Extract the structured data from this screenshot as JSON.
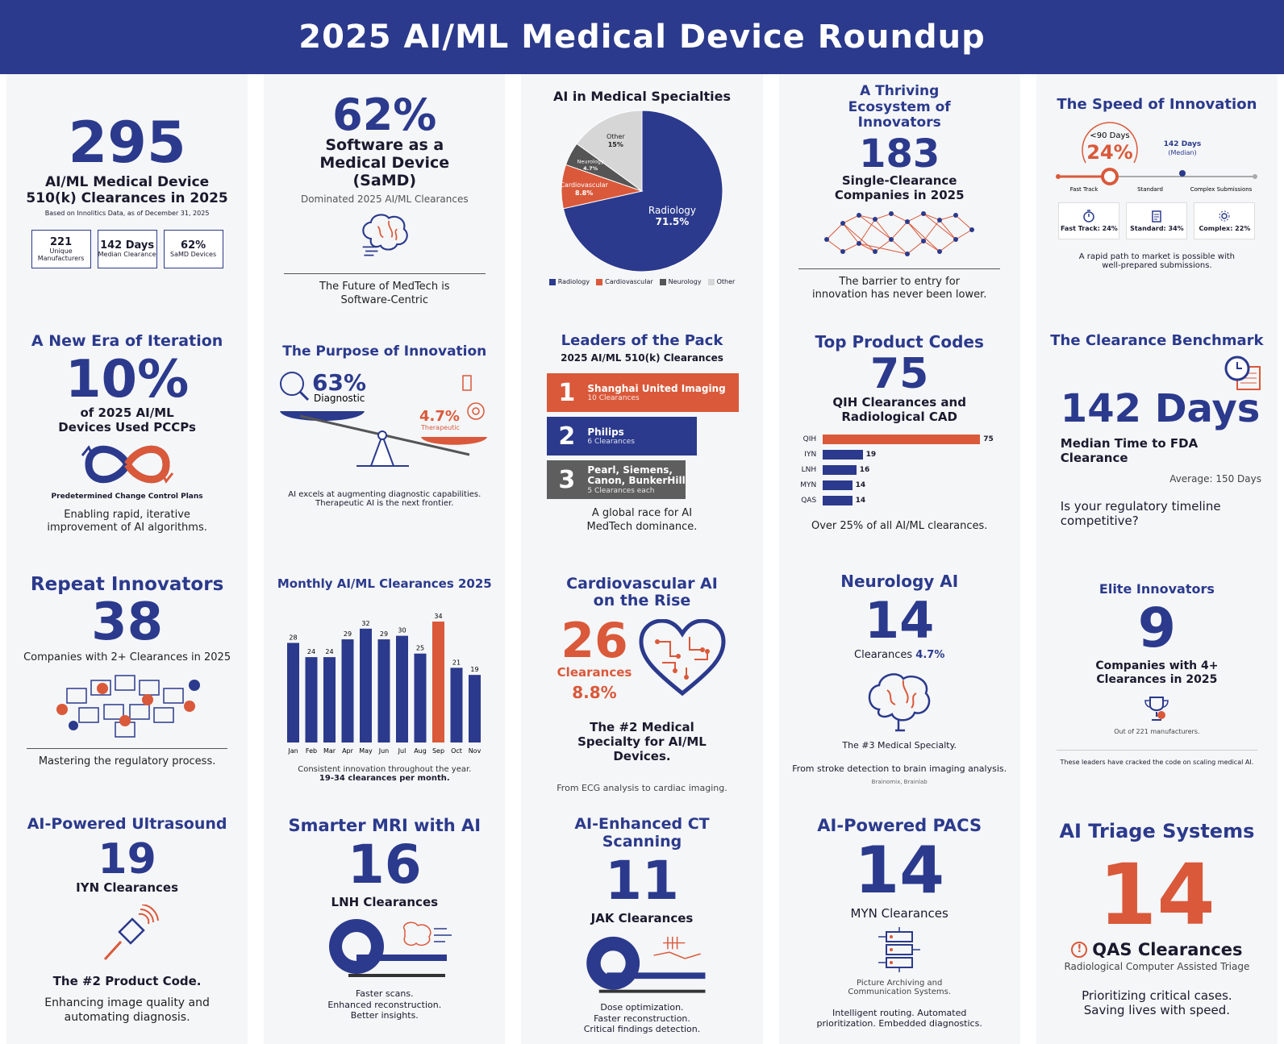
{
  "header": {
    "title": "2025 AI/ML Medical Device Roundup"
  },
  "colors": {
    "navy": "#2b3a8c",
    "orange": "#d9593a",
    "gray": "#6b6b6b"
  },
  "card1": {
    "big": "295",
    "line1": "AI/ML Medical Device",
    "line2": "510(k) Clearances in 2025",
    "source": "Based on Innolitics Data, as of December 31, 2025",
    "boxes": [
      {
        "value": "221",
        "label": "Unique Manufacturers"
      },
      {
        "value": "142 Days",
        "label": "Median Clearance"
      },
      {
        "value": "62%",
        "label": "SaMD Devices"
      }
    ]
  },
  "card2": {
    "big": "62%",
    "title": "Software as a Medical Device (SaMD)",
    "sub": "Dominated 2025 AI/ML Clearances",
    "footer": "The Future of MedTech is Software-Centric"
  },
  "card3": {
    "title": "AI in Medical Specialties"
  },
  "card4": {
    "title": "A Thriving Ecosystem of Innovators",
    "big": "183",
    "sub": "Single-Clearance Companies in 2025",
    "footer": "The barrier to entry for innovation has never been lower."
  },
  "card5": {
    "title": "The Speed of Innovation",
    "under90": "<90 Days",
    "pct": "24%",
    "median_value": "142 Days",
    "median_label": "(Median)",
    "track_labels": [
      "Fast Track",
      "Standard",
      "Complex Submissions"
    ],
    "boxes": [
      "Fast Track: 24%",
      "Standard: 34%",
      "Complex: 22%"
    ],
    "footer": "A rapid path to market is possible with well-prepared submissions."
  },
  "card6": {
    "title": "A New Era of Iteration",
    "big": "10%",
    "sub": "of 2025 AI/ML Devices Used PCCPs",
    "caption": "Predetermined Change Control Plans",
    "footer": "Enabling rapid, iterative improvement of AI algorithms."
  },
  "card7": {
    "title": "The Purpose of Innovation",
    "diag_pct": "63%",
    "diag_label": "Diagnostic",
    "ther_pct": "4.7%",
    "ther_label": "Therapeutic",
    "footer": "AI excels at augmenting diagnostic capabilities. Therapeutic AI is the next frontier."
  },
  "card8": {
    "title": "Leaders of the Pack",
    "subtitle": "2025 AI/ML 510(k) Clearances",
    "leaders": [
      {
        "rank": "1",
        "name": "Shanghai United Imaging",
        "count": "10 Clearances"
      },
      {
        "rank": "2",
        "name": "Philips",
        "count": "6 Clearances"
      },
      {
        "rank": "3",
        "name": "Pearl, Siemens, Canon, BunkerHill",
        "count": "5 Clearances each"
      }
    ],
    "footer": "A global race for AI MedTech dominance."
  },
  "card9": {
    "title": "Top Product Codes",
    "big": "75",
    "sub": "QIH Clearances and Radiological CAD",
    "footer": "Over 25% of all AI/ML clearances."
  },
  "card10": {
    "title": "The Clearance Benchmark",
    "big": "142 Days",
    "sub": "Median Time to FDA Clearance",
    "avg": "Average: 150 Days",
    "question": "Is your regulatory timeline competitive?"
  },
  "card11": {
    "title": "Repeat Innovators",
    "big": "38",
    "sub": "Companies with 2+ Clearances in 2025",
    "footer": "Mastering the regulatory process."
  },
  "card12": {
    "title": "Monthly AI/ML Clearances 2025",
    "footer1": "Consistent innovation throughout the year.",
    "footer2": "19-34 clearances per month."
  },
  "card13": {
    "title": "Cardiovascular AI on the Rise",
    "big": "26",
    "label": "Clearances",
    "pct": "8.8%",
    "sub": "The #2 Medical Specialty for AI/ML Devices.",
    "footer": "From ECG analysis to cardiac imaging."
  },
  "card14": {
    "title": "Neurology AI",
    "big": "14",
    "label": "Clearances",
    "pct": "4.7%",
    "sub": "The #3 Medical Specialty.",
    "footer": "From stroke detection to brain imaging analysis.",
    "note": "Brainomix, Brainlab"
  },
  "card15": {
    "title": "Elite Innovators",
    "big": "9",
    "sub": "Companies with 4+ Clearances in 2025",
    "note": "Out of 221 manufacturers.",
    "footer": "These leaders have cracked the code on scaling medical AI."
  },
  "card16": {
    "title": "AI-Powered Ultrasound",
    "big": "19",
    "sub": "IYN Clearances",
    "rank": "The #2 Product Code.",
    "footer": "Enhancing image quality and automating diagnosis."
  },
  "card17": {
    "title": "Smarter MRI with AI",
    "big": "16",
    "sub": "LNH Clearances",
    "footer": [
      "Faster scans.",
      "Enhanced reconstruction.",
      "Better insights."
    ]
  },
  "card18": {
    "title": "AI-Enhanced CT Scanning",
    "big": "11",
    "sub": "JAK Clearances",
    "footer": [
      "Dose optimization.",
      "Faster reconstruction.",
      "Critical findings detection."
    ]
  },
  "card19": {
    "title": "AI-Powered PACS",
    "big": "14",
    "sub": "MYN Clearances",
    "note": "Picture Archiving and Communication Systems.",
    "footer": "Intelligent routing. Automated prioritization. Embedded diagnostics."
  },
  "card20": {
    "title": "AI Triage Systems",
    "big": "14",
    "sub": "QAS Clearances",
    "note": "Radiological Computer Assisted Triage",
    "footer": "Prioritizing critical cases. Saving lives with speed."
  },
  "chart_data": [
    {
      "type": "pie",
      "title": "AI in Medical Specialties",
      "categories": [
        "Radiology",
        "Cardiovascular",
        "Neurology",
        "Other"
      ],
      "values": [
        71.5,
        8.8,
        4.7,
        15
      ],
      "labels": [
        "Radiology 71.5%",
        "Cardiovascular 8.8%",
        "Neurology 4.7%",
        "Other 15%"
      ],
      "colors": [
        "#2b3a8c",
        "#d9593a",
        "#555555",
        "#d6d6d6"
      ]
    },
    {
      "type": "bar",
      "orientation": "horizontal",
      "title": "Top Product Codes",
      "categories": [
        "QIH",
        "IYN",
        "LNH",
        "MYN",
        "QAS"
      ],
      "values": [
        75,
        19,
        16,
        14,
        14
      ],
      "xlim": [
        0,
        75
      ]
    },
    {
      "type": "bar",
      "title": "Monthly AI/ML Clearances 2025",
      "categories": [
        "Jan",
        "Feb",
        "Mar",
        "Apr",
        "May",
        "Jun",
        "Jul",
        "Aug",
        "Sep",
        "Oct",
        "Nov"
      ],
      "values": [
        28,
        24,
        24,
        29,
        32,
        29,
        30,
        25,
        34,
        21,
        19
      ],
      "highlight": "Sep",
      "ylim": [
        0,
        34
      ]
    }
  ]
}
